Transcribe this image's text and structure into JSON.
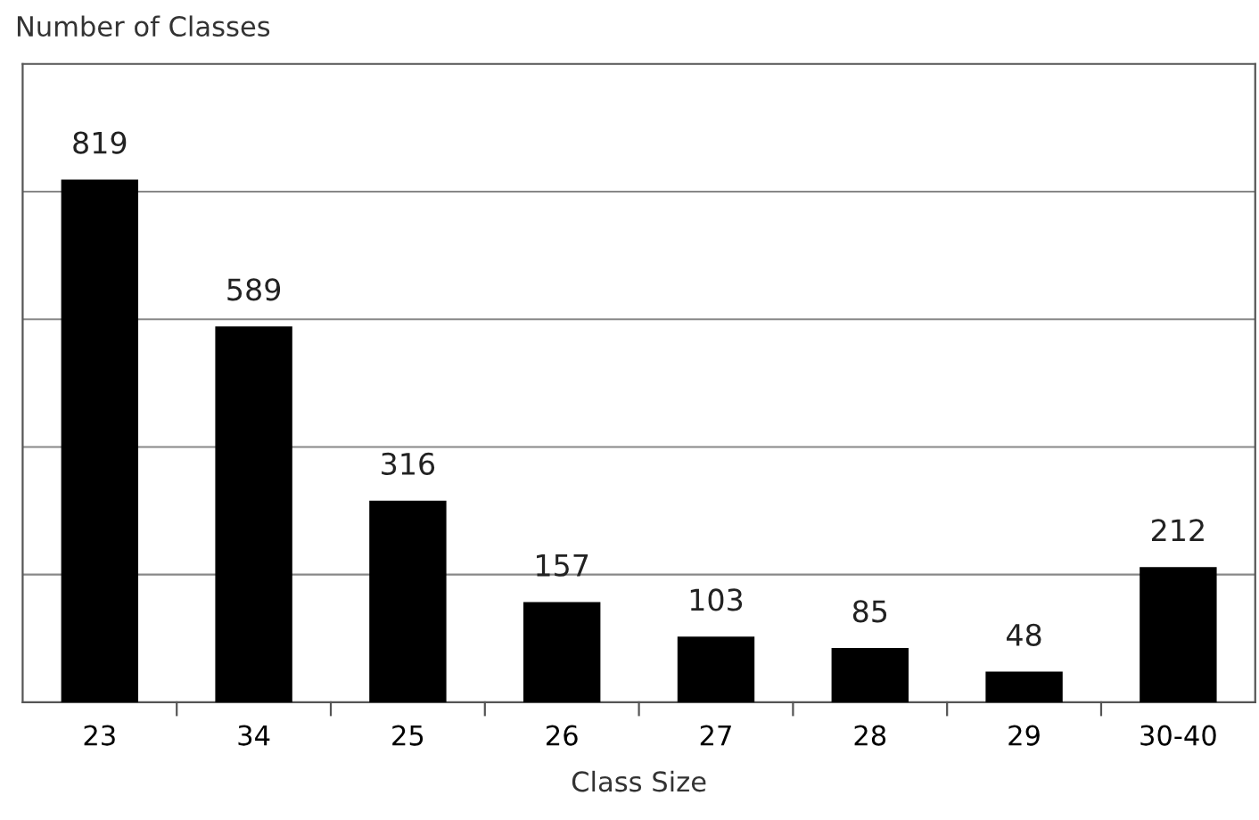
{
  "chart_data": {
    "type": "bar",
    "ylabel": "Number of Classes",
    "xlabel": "Class Size",
    "categories": [
      "23",
      "34",
      "25",
      "26",
      "27",
      "28",
      "29",
      "30-40"
    ],
    "values": [
      819,
      589,
      316,
      157,
      103,
      85,
      48,
      212
    ],
    "color": "#000000",
    "ylim": [
      0,
      1000
    ],
    "yticks": [
      {
        "value": 200,
        "label": null
      },
      {
        "value": 400,
        "label": null
      },
      {
        "value": 600,
        "label": null
      },
      {
        "value": 800,
        "label": null
      }
    ],
    "grid": "y",
    "data_labels": true,
    "tick_labels": "x"
  }
}
